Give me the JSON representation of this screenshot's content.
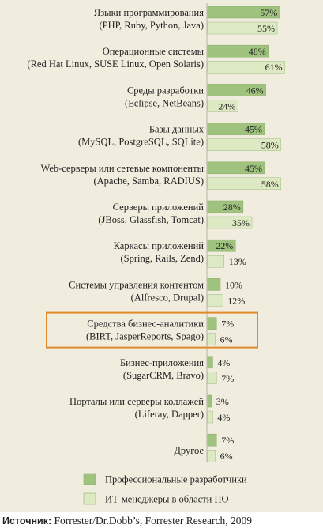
{
  "chart_data": {
    "type": "bar",
    "orientation": "horizontal",
    "categories": [
      [
        "Языки программирования",
        "(PHP, Ruby, Python, Java)"
      ],
      [
        "Операционные системы",
        "(Red Hat Linux, SUSE Linux, Open Solaris)"
      ],
      [
        "Среды разработки",
        "(Eclipse, NetBeans)"
      ],
      [
        "Базы данных",
        "(MySQL, PostgreSQL, SQLite)"
      ],
      [
        "Web-серверы или сетевые компоненты",
        "(Apache, Samba, RADIUS)"
      ],
      [
        "Серверы приложений",
        "(JBoss, Glassfish, Tomcat)"
      ],
      [
        "Каркасы приложений",
        "(Spring, Rails, Zend)"
      ],
      [
        "Системы управления контентом",
        "(Alfresco, Drupal)"
      ],
      [
        "Средства бизнес-аналитики",
        "(BIRT, JasperReports, Spago)"
      ],
      [
        "Бизнес-приложения",
        "(SugarCRM, Bravo)"
      ],
      [
        "Порталы или серверы коллажей",
        "(Liferay, Dapper)"
      ],
      [
        "Другое"
      ]
    ],
    "series": [
      {
        "name": "Профессиональные разработчики",
        "values": [
          57,
          48,
          46,
          45,
          45,
          28,
          22,
          10,
          7,
          4,
          3,
          7
        ],
        "labels": [
          "57%",
          "48%",
          "46%",
          "45%",
          "45%",
          "28%",
          "22%",
          "10%",
          "7%",
          "4%",
          "3%",
          "7%"
        ],
        "color": "#9fc37e"
      },
      {
        "name": "ИТ-менеджеры в области ПО",
        "values": [
          55,
          61,
          24,
          58,
          58,
          35,
          13,
          12,
          6,
          7,
          4,
          6
        ],
        "labels": [
          "55%",
          "61%",
          "24%",
          "58%",
          "58%",
          "35%",
          "13%",
          "12%",
          "6%",
          "7%",
          "4%",
          "6%"
        ],
        "color": "#dde9c3"
      }
    ],
    "highlighted_category_index": 8,
    "highlight_color": "#e08a2c",
    "xlim": [
      0,
      100
    ],
    "grid": false,
    "legend_position": "bottom",
    "background_color": "#f1edde",
    "source": {
      "label": "Источник:",
      "text": " Forrester/Dr.Dobb’s, Forrester Research, 2009"
    }
  }
}
